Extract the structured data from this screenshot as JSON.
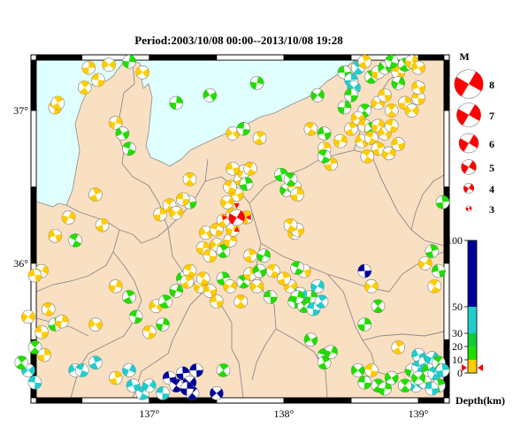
{
  "title": "Period:2003/10/08 00:00--2013/10/08 19:28",
  "map": {
    "lon_ticks": [
      {
        "v": 137,
        "label": "137°"
      },
      {
        "v": 138,
        "label": "138°"
      },
      {
        "v": 139,
        "label": "139°"
      }
    ],
    "lat_ticks": [
      {
        "v": 37,
        "label": "37°"
      },
      {
        "v": 36,
        "label": "36°"
      }
    ],
    "colors": {
      "land": "#fae0c3",
      "sea": "#e0ffff",
      "border": "#8a8a8a",
      "frame": "#000000"
    }
  },
  "magnitude_legend": {
    "title": "M",
    "items": [
      {
        "label": "8",
        "m": 8
      },
      {
        "label": "7",
        "m": 7
      },
      {
        "label": "6",
        "m": 6
      },
      {
        "label": "5",
        "m": 5
      },
      {
        "label": "4",
        "m": 4
      },
      {
        "label": "3",
        "m": 3
      }
    ],
    "color": "#ff0000"
  },
  "depth_legend": {
    "title": "Depth(km)",
    "ticks": [
      {
        "v": 100,
        "label": "100"
      },
      {
        "v": 50,
        "label": "50"
      },
      {
        "v": 30,
        "label": "30"
      },
      {
        "v": 20,
        "label": "20"
      },
      {
        "v": 10,
        "label": "10"
      },
      {
        "v": 0,
        "label": "0"
      }
    ],
    "bands": [
      {
        "from": 0,
        "to": 10,
        "color": "#ffcc00"
      },
      {
        "from": 10,
        "to": 20,
        "color": "#22dd00"
      },
      {
        "from": 20,
        "to": 30,
        "color": "#11cc33"
      },
      {
        "from": 30,
        "to": 50,
        "color": "#22cccc"
      },
      {
        "from": 50,
        "to": 100,
        "color": "#000099"
      }
    ]
  },
  "latest_event": {
    "lon": 137.65,
    "lat": 36.3,
    "color": "#ff0000"
  },
  "events": [
    {
      "lon": 136.55,
      "lat": 37.28,
      "c": "y"
    },
    {
      "lon": 136.7,
      "lat": 37.3,
      "c": "y"
    },
    {
      "lon": 136.62,
      "lat": 37.2,
      "c": "y"
    },
    {
      "lon": 136.52,
      "lat": 37.15,
      "c": "y"
    },
    {
      "lon": 136.85,
      "lat": 37.32,
      "c": "g"
    },
    {
      "lon": 136.95,
      "lat": 37.25,
      "c": "y"
    },
    {
      "lon": 136.3,
      "lat": 37.02,
      "c": "y"
    },
    {
      "lon": 136.32,
      "lat": 37.05,
      "c": "y"
    },
    {
      "lon": 136.75,
      "lat": 36.92,
      "c": "y"
    },
    {
      "lon": 136.8,
      "lat": 36.85,
      "c": "g"
    },
    {
      "lon": 136.85,
      "lat": 36.75,
      "c": "g"
    },
    {
      "lon": 136.6,
      "lat": 36.45,
      "c": "y"
    },
    {
      "lon": 136.4,
      "lat": 36.3,
      "c": "y"
    },
    {
      "lon": 136.3,
      "lat": 36.18,
      "c": "y"
    },
    {
      "lon": 136.45,
      "lat": 36.15,
      "c": "g"
    },
    {
      "lon": 136.65,
      "lat": 36.25,
      "c": "y"
    },
    {
      "lon": 136.2,
      "lat": 35.95,
      "c": "y"
    },
    {
      "lon": 136.15,
      "lat": 35.92,
      "c": "y"
    },
    {
      "lon": 136.25,
      "lat": 35.7,
      "c": "y"
    },
    {
      "lon": 136.3,
      "lat": 35.6,
      "c": "g"
    },
    {
      "lon": 136.1,
      "lat": 35.65,
      "c": "y"
    },
    {
      "lon": 136.2,
      "lat": 35.55,
      "c": "y"
    },
    {
      "lon": 136.15,
      "lat": 35.45,
      "c": "g"
    },
    {
      "lon": 136.22,
      "lat": 35.4,
      "c": "y"
    },
    {
      "lon": 136.1,
      "lat": 35.3,
      "c": "c"
    },
    {
      "lon": 136.15,
      "lat": 35.22,
      "c": "c"
    },
    {
      "lon": 136.05,
      "lat": 35.35,
      "c": "g"
    },
    {
      "lon": 136.35,
      "lat": 35.62,
      "c": "y"
    },
    {
      "lon": 136.6,
      "lat": 35.6,
      "c": "y"
    },
    {
      "lon": 136.9,
      "lat": 35.65,
      "c": "g"
    },
    {
      "lon": 136.85,
      "lat": 35.78,
      "c": "g"
    },
    {
      "lon": 136.75,
      "lat": 35.85,
      "c": "y"
    },
    {
      "lon": 136.45,
      "lat": 35.3,
      "c": "c"
    },
    {
      "lon": 136.5,
      "lat": 35.3,
      "c": "c"
    },
    {
      "lon": 136.6,
      "lat": 35.35,
      "c": "c"
    },
    {
      "lon": 136.85,
      "lat": 35.3,
      "c": "c"
    },
    {
      "lon": 136.88,
      "lat": 35.2,
      "c": "c"
    },
    {
      "lon": 136.95,
      "lat": 35.15,
      "c": "c"
    },
    {
      "lon": 136.75,
      "lat": 35.25,
      "c": "y"
    },
    {
      "lon": 137.0,
      "lat": 35.2,
      "c": "c"
    },
    {
      "lon": 137.15,
      "lat": 35.25,
      "c": "b"
    },
    {
      "lon": 137.2,
      "lat": 35.2,
      "c": "b"
    },
    {
      "lon": 137.25,
      "lat": 35.28,
      "c": "b"
    },
    {
      "lon": 137.3,
      "lat": 35.22,
      "c": "b"
    },
    {
      "lon": 137.35,
      "lat": 35.3,
      "c": "b"
    },
    {
      "lon": 137.32,
      "lat": 35.15,
      "c": "b"
    },
    {
      "lon": 137.28,
      "lat": 35.18,
      "c": "b"
    },
    {
      "lon": 137.5,
      "lat": 35.15,
      "c": "b"
    },
    {
      "lon": 137.1,
      "lat": 35.15,
      "c": "c"
    },
    {
      "lon": 137.55,
      "lat": 35.3,
      "c": "g"
    },
    {
      "lon": 137.1,
      "lat": 35.6,
      "c": "g"
    },
    {
      "lon": 137.05,
      "lat": 35.72,
      "c": "y"
    },
    {
      "lon": 137.0,
      "lat": 35.55,
      "c": "y"
    },
    {
      "lon": 137.12,
      "lat": 35.75,
      "c": "g"
    },
    {
      "lon": 137.2,
      "lat": 35.82,
      "c": "g"
    },
    {
      "lon": 137.25,
      "lat": 35.9,
      "c": "g"
    },
    {
      "lon": 137.3,
      "lat": 35.95,
      "c": "y"
    },
    {
      "lon": 137.28,
      "lat": 35.88,
      "c": "y"
    },
    {
      "lon": 137.38,
      "lat": 35.85,
      "c": "y"
    },
    {
      "lon": 137.45,
      "lat": 35.82,
      "c": "y"
    },
    {
      "lon": 137.4,
      "lat": 35.9,
      "c": "y"
    },
    {
      "lon": 137.55,
      "lat": 35.9,
      "c": "g"
    },
    {
      "lon": 137.6,
      "lat": 35.85,
      "c": "y"
    },
    {
      "lon": 137.5,
      "lat": 35.75,
      "c": "y"
    },
    {
      "lon": 137.7,
      "lat": 35.88,
      "c": "g"
    },
    {
      "lon": 137.75,
      "lat": 35.93,
      "c": "y"
    },
    {
      "lon": 137.8,
      "lat": 35.85,
      "c": "y"
    },
    {
      "lon": 137.9,
      "lat": 35.78,
      "c": "g"
    },
    {
      "lon": 137.68,
      "lat": 35.75,
      "c": "y"
    },
    {
      "lon": 137.4,
      "lat": 36.1,
      "c": "y"
    },
    {
      "lon": 137.5,
      "lat": 36.12,
      "c": "y"
    },
    {
      "lon": 137.45,
      "lat": 36.05,
      "c": "y"
    },
    {
      "lon": 137.55,
      "lat": 36.08,
      "c": "g"
    },
    {
      "lon": 137.6,
      "lat": 36.15,
      "c": "y"
    },
    {
      "lon": 137.42,
      "lat": 36.2,
      "c": "y"
    },
    {
      "lon": 137.5,
      "lat": 36.22,
      "c": "y"
    },
    {
      "lon": 137.55,
      "lat": 36.28,
      "c": "y"
    },
    {
      "lon": 137.62,
      "lat": 36.22,
      "c": "y"
    },
    {
      "lon": 137.65,
      "lat": 36.45,
      "c": "y"
    },
    {
      "lon": 137.6,
      "lat": 36.5,
      "c": "y"
    },
    {
      "lon": 137.68,
      "lat": 36.55,
      "c": "y"
    },
    {
      "lon": 137.7,
      "lat": 36.6,
      "c": "y"
    },
    {
      "lon": 137.62,
      "lat": 36.62,
      "c": "y"
    },
    {
      "lon": 137.75,
      "lat": 36.62,
      "c": "y"
    },
    {
      "lon": 137.72,
      "lat": 36.52,
      "c": "g"
    },
    {
      "lon": 137.58,
      "lat": 36.4,
      "c": "y"
    },
    {
      "lon": 137.3,
      "lat": 36.4,
      "c": "g"
    },
    {
      "lon": 137.15,
      "lat": 36.38,
      "c": "y"
    },
    {
      "lon": 137.08,
      "lat": 36.32,
      "c": "y"
    },
    {
      "lon": 137.2,
      "lat": 36.33,
      "c": "y"
    },
    {
      "lon": 137.25,
      "lat": 36.42,
      "c": "y"
    },
    {
      "lon": 137.3,
      "lat": 36.55,
      "c": "y"
    },
    {
      "lon": 137.2,
      "lat": 37.05,
      "c": "g"
    },
    {
      "lon": 137.62,
      "lat": 36.85,
      "c": "y"
    },
    {
      "lon": 137.7,
      "lat": 36.88,
      "c": "g"
    },
    {
      "lon": 137.82,
      "lat": 36.82,
      "c": "y"
    },
    {
      "lon": 137.8,
      "lat": 37.18,
      "c": "g"
    },
    {
      "lon": 137.45,
      "lat": 37.1,
      "c": "g"
    },
    {
      "lon": 137.62,
      "lat": 36.32,
      "c": "y"
    },
    {
      "lon": 137.72,
      "lat": 36.3,
      "c": "y"
    },
    {
      "lon": 137.85,
      "lat": 36.05,
      "c": "g"
    },
    {
      "lon": 137.82,
      "lat": 35.95,
      "c": "g"
    },
    {
      "lon": 137.92,
      "lat": 35.95,
      "c": "y"
    },
    {
      "lon": 137.75,
      "lat": 36.05,
      "c": "y"
    },
    {
      "lon": 138.08,
      "lat": 36.2,
      "c": "y"
    },
    {
      "lon": 138.1,
      "lat": 36.22,
      "c": "y"
    },
    {
      "lon": 138.05,
      "lat": 36.25,
      "c": "y"
    },
    {
      "lon": 137.98,
      "lat": 36.58,
      "c": "g"
    },
    {
      "lon": 138.02,
      "lat": 36.48,
      "c": "g"
    },
    {
      "lon": 138.08,
      "lat": 36.5,
      "c": "y"
    },
    {
      "lon": 138.05,
      "lat": 36.55,
      "c": "g"
    },
    {
      "lon": 138.1,
      "lat": 36.45,
      "c": "y"
    },
    {
      "lon": 138.05,
      "lat": 35.85,
      "c": "y"
    },
    {
      "lon": 138.08,
      "lat": 35.75,
      "c": "g"
    },
    {
      "lon": 138.15,
      "lat": 35.72,
      "c": "g"
    },
    {
      "lon": 138.2,
      "lat": 35.78,
      "c": "g"
    },
    {
      "lon": 138.12,
      "lat": 35.8,
      "c": "c"
    },
    {
      "lon": 138.22,
      "lat": 35.7,
      "c": "c"
    },
    {
      "lon": 138.28,
      "lat": 35.75,
      "c": "c"
    },
    {
      "lon": 138.1,
      "lat": 35.78,
      "c": "g"
    },
    {
      "lon": 138.2,
      "lat": 35.5,
      "c": "g"
    },
    {
      "lon": 138.3,
      "lat": 35.4,
      "c": "g"
    },
    {
      "lon": 138.3,
      "lat": 35.35,
      "c": "g"
    },
    {
      "lon": 138.35,
      "lat": 35.42,
      "c": "g"
    },
    {
      "lon": 138.15,
      "lat": 35.95,
      "c": "y"
    },
    {
      "lon": 138.1,
      "lat": 35.97,
      "c": "g"
    },
    {
      "lon": 138.0,
      "lat": 35.9,
      "c": "y"
    },
    {
      "lon": 138.25,
      "lat": 35.85,
      "c": "c"
    },
    {
      "lon": 138.3,
      "lat": 36.85,
      "c": "g"
    },
    {
      "lon": 138.2,
      "lat": 36.88,
      "c": "y"
    },
    {
      "lon": 138.3,
      "lat": 36.75,
      "c": "y"
    },
    {
      "lon": 138.25,
      "lat": 37.1,
      "c": "g"
    },
    {
      "lon": 138.45,
      "lat": 37.25,
      "c": "g"
    },
    {
      "lon": 138.55,
      "lat": 37.28,
      "c": "c"
    },
    {
      "lon": 138.5,
      "lat": 37.2,
      "c": "c"
    },
    {
      "lon": 138.52,
      "lat": 37.15,
      "c": "c"
    },
    {
      "lon": 138.5,
      "lat": 37.1,
      "c": "g"
    },
    {
      "lon": 138.6,
      "lat": 37.0,
      "c": "g"
    },
    {
      "lon": 138.45,
      "lat": 37.02,
      "c": "g"
    },
    {
      "lon": 138.55,
      "lat": 36.95,
      "c": "y"
    },
    {
      "lon": 138.6,
      "lat": 36.9,
      "c": "y"
    },
    {
      "lon": 138.65,
      "lat": 36.88,
      "c": "g"
    },
    {
      "lon": 138.7,
      "lat": 36.9,
      "c": "y"
    },
    {
      "lon": 138.75,
      "lat": 36.85,
      "c": "y"
    },
    {
      "lon": 138.8,
      "lat": 36.9,
      "c": "y"
    },
    {
      "lon": 138.5,
      "lat": 36.88,
      "c": "y"
    },
    {
      "lon": 138.42,
      "lat": 36.8,
      "c": "y"
    },
    {
      "lon": 138.58,
      "lat": 36.8,
      "c": "y"
    },
    {
      "lon": 138.65,
      "lat": 36.82,
      "c": "y"
    },
    {
      "lon": 138.7,
      "lat": 36.75,
      "c": "y"
    },
    {
      "lon": 138.78,
      "lat": 36.72,
      "c": "y"
    },
    {
      "lon": 138.85,
      "lat": 36.78,
      "c": "y"
    },
    {
      "lon": 138.62,
      "lat": 36.7,
      "c": "y"
    },
    {
      "lon": 138.35,
      "lat": 36.65,
      "c": "y"
    },
    {
      "lon": 138.7,
      "lat": 37.05,
      "c": "y"
    },
    {
      "lon": 138.75,
      "lat": 37.1,
      "c": "y"
    },
    {
      "lon": 138.8,
      "lat": 37.0,
      "c": "y"
    },
    {
      "lon": 138.9,
      "lat": 37.05,
      "c": "y"
    },
    {
      "lon": 138.95,
      "lat": 37.0,
      "c": "y"
    },
    {
      "lon": 139.0,
      "lat": 37.08,
      "c": "y"
    },
    {
      "lon": 138.65,
      "lat": 37.22,
      "c": "g"
    },
    {
      "lon": 138.7,
      "lat": 37.25,
      "c": "y"
    },
    {
      "lon": 138.75,
      "lat": 37.28,
      "c": "g"
    },
    {
      "lon": 138.85,
      "lat": 37.25,
      "c": "y"
    },
    {
      "lon": 138.9,
      "lat": 37.3,
      "c": "g"
    },
    {
      "lon": 138.95,
      "lat": 37.32,
      "c": "y"
    },
    {
      "lon": 139.0,
      "lat": 37.28,
      "c": "y"
    },
    {
      "lon": 138.8,
      "lat": 37.32,
      "c": "g"
    },
    {
      "lon": 138.6,
      "lat": 37.32,
      "c": "y"
    },
    {
      "lon": 138.85,
      "lat": 37.18,
      "c": "g"
    },
    {
      "lon": 139.0,
      "lat": 37.15,
      "c": "y"
    },
    {
      "lon": 138.3,
      "lat": 36.7,
      "c": "g"
    },
    {
      "lon": 139.1,
      "lat": 36.08,
      "c": "g"
    },
    {
      "lon": 139.05,
      "lat": 36.0,
      "c": "y"
    },
    {
      "lon": 139.15,
      "lat": 35.95,
      "c": "g"
    },
    {
      "lon": 139.12,
      "lat": 35.85,
      "c": "y"
    },
    {
      "lon": 139.18,
      "lat": 36.4,
      "c": "g"
    },
    {
      "lon": 138.65,
      "lat": 35.85,
      "c": "y"
    },
    {
      "lon": 138.6,
      "lat": 35.95,
      "c": "b"
    },
    {
      "lon": 138.7,
      "lat": 35.72,
      "c": "g"
    },
    {
      "lon": 138.6,
      "lat": 35.6,
      "c": "g"
    },
    {
      "lon": 138.55,
      "lat": 35.3,
      "c": "g"
    },
    {
      "lon": 138.6,
      "lat": 35.22,
      "c": "g"
    },
    {
      "lon": 138.7,
      "lat": 35.2,
      "c": "g"
    },
    {
      "lon": 138.75,
      "lat": 35.18,
      "c": "g"
    },
    {
      "lon": 138.8,
      "lat": 35.25,
      "c": "g"
    },
    {
      "lon": 138.65,
      "lat": 35.3,
      "c": "y"
    },
    {
      "lon": 138.85,
      "lat": 35.45,
      "c": "y"
    },
    {
      "lon": 138.95,
      "lat": 35.3,
      "c": "g"
    },
    {
      "lon": 139.0,
      "lat": 35.4,
      "c": "c"
    },
    {
      "lon": 139.0,
      "lat": 35.32,
      "c": "c"
    },
    {
      "lon": 139.05,
      "lat": 35.35,
      "c": "c"
    },
    {
      "lon": 139.1,
      "lat": 35.38,
      "c": "c"
    },
    {
      "lon": 139.08,
      "lat": 35.3,
      "c": "g"
    },
    {
      "lon": 139.12,
      "lat": 35.28,
      "c": "c"
    },
    {
      "lon": 139.15,
      "lat": 35.2,
      "c": "g"
    },
    {
      "lon": 138.98,
      "lat": 35.2,
      "c": "c"
    },
    {
      "lon": 139.05,
      "lat": 35.22,
      "c": "g"
    },
    {
      "lon": 139.15,
      "lat": 35.35,
      "c": "g"
    },
    {
      "lon": 139.18,
      "lat": 35.3,
      "c": "c"
    },
    {
      "lon": 139.0,
      "lat": 35.25,
      "c": "g"
    },
    {
      "lon": 139.1,
      "lat": 35.18,
      "c": "c"
    },
    {
      "lon": 138.9,
      "lat": 35.2,
      "c": "g"
    }
  ]
}
